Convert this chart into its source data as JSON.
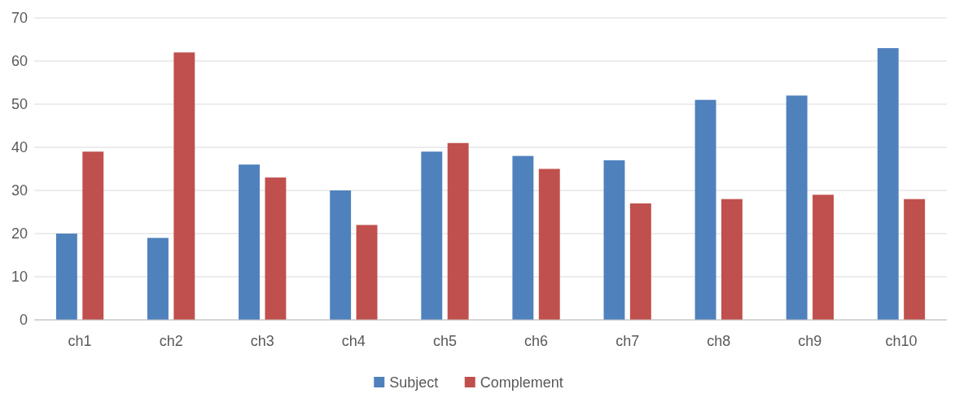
{
  "chart_data": {
    "type": "bar",
    "categories": [
      "ch1",
      "ch2",
      "ch3",
      "ch4",
      "ch5",
      "ch6",
      "ch7",
      "ch8",
      "ch9",
      "ch10"
    ],
    "series": [
      {
        "name": "Subject",
        "color": "#4f81bd",
        "values": [
          20,
          19,
          36,
          30,
          39,
          38,
          37,
          51,
          52,
          63
        ]
      },
      {
        "name": "Complement",
        "color": "#c0504d",
        "values": [
          39,
          62,
          33,
          22,
          41,
          35,
          27,
          28,
          29,
          28
        ]
      }
    ],
    "ylim": [
      0,
      70
    ],
    "yticks": [
      0,
      10,
      20,
      30,
      40,
      50,
      60,
      70
    ],
    "grid": "y",
    "legend": "bottom"
  }
}
